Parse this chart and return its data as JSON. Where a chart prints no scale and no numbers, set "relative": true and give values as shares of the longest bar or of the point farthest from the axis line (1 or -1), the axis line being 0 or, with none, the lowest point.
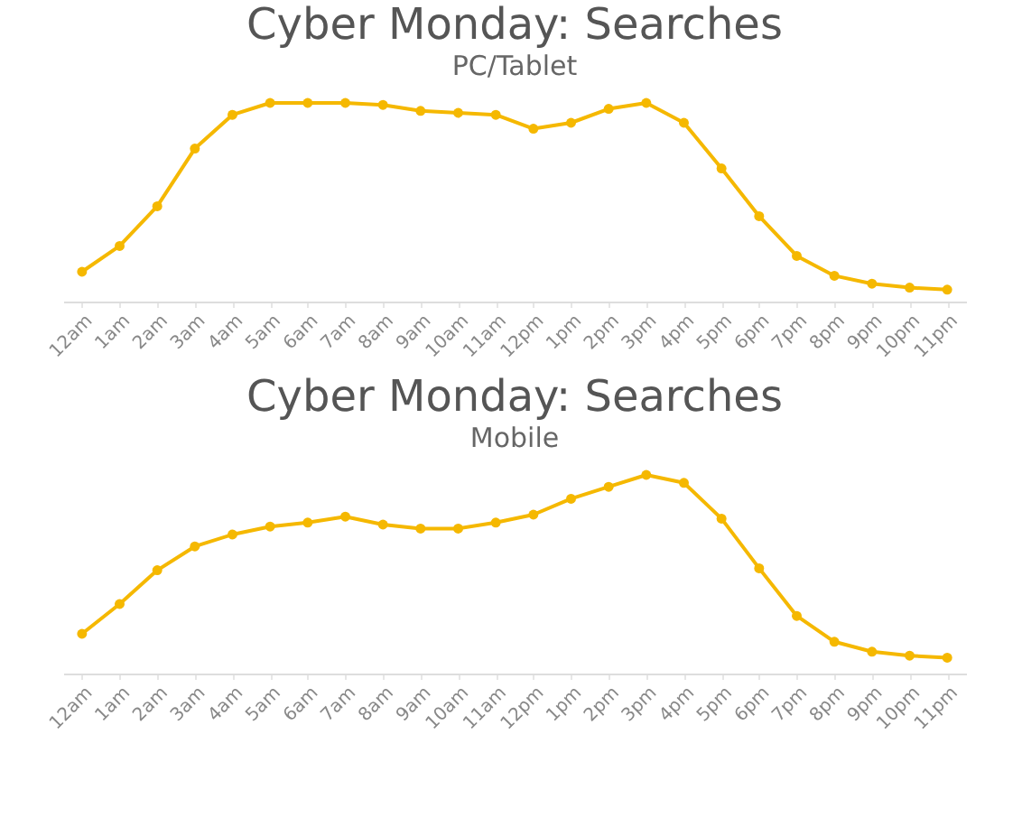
{
  "chart_data": [
    {
      "type": "line",
      "title": "Cyber Monday: Searches",
      "subtitle": "PC/Tablet",
      "relative": true,
      "marker": "circle",
      "line_style": "solid",
      "grid": false,
      "legend": false,
      "categories": [
        "12am",
        "1am",
        "2am",
        "3am",
        "4am",
        "5am",
        "6am",
        "7am",
        "8am",
        "9am",
        "10am",
        "11am",
        "12pm",
        "1pm",
        "2pm",
        "3pm",
        "4pm",
        "5pm",
        "6pm",
        "7pm",
        "8pm",
        "9pm",
        "10pm",
        "11pm"
      ],
      "series": [
        {
          "color": "#f5b800",
          "values": [
            0.15,
            0.28,
            0.48,
            0.77,
            0.94,
            1.0,
            1.0,
            1.0,
            0.99,
            0.96,
            0.95,
            0.94,
            0.87,
            0.9,
            0.97,
            1.0,
            0.9,
            0.67,
            0.43,
            0.23,
            0.13,
            0.09,
            0.07,
            0.06
          ]
        }
      ]
    },
    {
      "type": "line",
      "title": "Cyber Monday: Searches",
      "subtitle": "Mobile",
      "relative": true,
      "marker": "circle",
      "line_style": "solid",
      "grid": false,
      "legend": false,
      "categories": [
        "12am",
        "1am",
        "2am",
        "3am",
        "4am",
        "5am",
        "6am",
        "7am",
        "8am",
        "9am",
        "10am",
        "11am",
        "12pm",
        "1pm",
        "2pm",
        "3pm",
        "4pm",
        "5pm",
        "6pm",
        "7pm",
        "8pm",
        "9pm",
        "10pm",
        "11pm"
      ],
      "series": [
        {
          "color": "#f5b800",
          "values": [
            0.2,
            0.35,
            0.52,
            0.64,
            0.7,
            0.74,
            0.76,
            0.79,
            0.75,
            0.73,
            0.73,
            0.76,
            0.8,
            0.88,
            0.94,
            1.0,
            0.96,
            0.78,
            0.53,
            0.29,
            0.16,
            0.11,
            0.09,
            0.08
          ]
        }
      ]
    }
  ]
}
